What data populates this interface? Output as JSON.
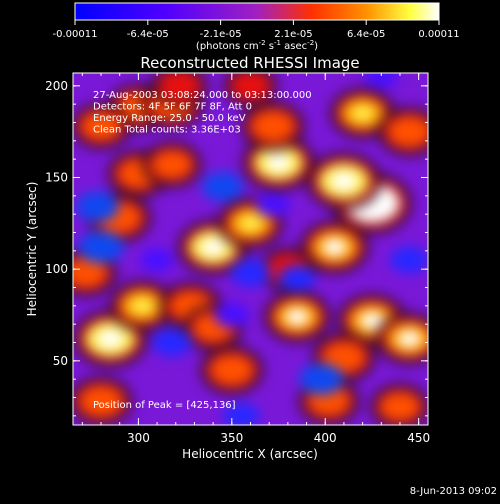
{
  "chart_data": {
    "type": "heatmap",
    "title": "Reconstructed RHESSI Image",
    "xlabel": "Heliocentric X (arcsec)",
    "ylabel": "Heliocentric Y (arcsec)",
    "xlim": [
      265,
      455
    ],
    "ylim": [
      15,
      207
    ],
    "x_ticks": [
      300,
      350,
      400,
      450
    ],
    "y_ticks": [
      50,
      100,
      150,
      200
    ],
    "colorbar": {
      "ticks": [
        "-0.00011",
        "-6.4e-05",
        "-2.1e-05",
        "2.1e-05",
        "6.4e-05",
        "0.00011"
      ],
      "unit_label": "(photons cm",
      "unit_exp1": "-2",
      "unit_mid": " s",
      "unit_exp2": "-1",
      "unit_mid2": " asec",
      "unit_exp3": "-2",
      "unit_end": ")",
      "range": [
        -0.00011,
        0.00011
      ]
    },
    "annotations": [
      "27-Aug-2003 03:08:24.000 to 03:13:00.000",
      "Detectors: 4F 5F 6F 7F 8F, Att 0",
      "Energy Range: 25.0 - 50.0 keV",
      "Clean     Total counts: 3.36E+03"
    ],
    "peak_label": "Position of Peak = [425,136]",
    "peak": [
      425,
      136
    ],
    "blobs": [
      {
        "x": 425,
        "y": 136,
        "v": 1.0
      },
      {
        "x": 410,
        "y": 148,
        "v": 0.85
      },
      {
        "x": 375,
        "y": 158,
        "v": 0.8
      },
      {
        "x": 340,
        "y": 112,
        "v": 0.75
      },
      {
        "x": 405,
        "y": 112,
        "v": 0.7
      },
      {
        "x": 360,
        "y": 125,
        "v": 0.6
      },
      {
        "x": 372,
        "y": 178,
        "v": 0.55
      },
      {
        "x": 420,
        "y": 185,
        "v": 0.6
      },
      {
        "x": 445,
        "y": 175,
        "v": 0.55
      },
      {
        "x": 300,
        "y": 188,
        "v": 0.5
      },
      {
        "x": 318,
        "y": 190,
        "v": 0.55
      },
      {
        "x": 280,
        "y": 178,
        "v": 0.45
      },
      {
        "x": 300,
        "y": 152,
        "v": 0.5
      },
      {
        "x": 318,
        "y": 157,
        "v": 0.45
      },
      {
        "x": 290,
        "y": 128,
        "v": 0.55
      },
      {
        "x": 272,
        "y": 98,
        "v": 0.5
      },
      {
        "x": 285,
        "y": 62,
        "v": 0.85
      },
      {
        "x": 302,
        "y": 80,
        "v": 0.6
      },
      {
        "x": 328,
        "y": 80,
        "v": 0.5
      },
      {
        "x": 280,
        "y": 28,
        "v": 0.55
      },
      {
        "x": 340,
        "y": 68,
        "v": 0.45
      },
      {
        "x": 350,
        "y": 45,
        "v": 0.55
      },
      {
        "x": 385,
        "y": 74,
        "v": 0.65
      },
      {
        "x": 425,
        "y": 72,
        "v": 0.7
      },
      {
        "x": 445,
        "y": 62,
        "v": 0.65
      },
      {
        "x": 410,
        "y": 52,
        "v": 0.55
      },
      {
        "x": 402,
        "y": 28,
        "v": 0.5
      },
      {
        "x": 440,
        "y": 25,
        "v": 0.45
      },
      {
        "x": 380,
        "y": 100,
        "v": 0.35
      },
      {
        "x": 322,
        "y": 200,
        "v": 0.35
      },
      {
        "x": 360,
        "y": 200,
        "v": 0.3
      },
      {
        "x": 280,
        "y": 112,
        "v": -0.7
      },
      {
        "x": 278,
        "y": 134,
        "v": -0.6
      },
      {
        "x": 345,
        "y": 145,
        "v": -0.55
      },
      {
        "x": 360,
        "y": 98,
        "v": -0.5
      },
      {
        "x": 385,
        "y": 95,
        "v": -0.4
      },
      {
        "x": 398,
        "y": 40,
        "v": -0.65
      },
      {
        "x": 318,
        "y": 60,
        "v": -0.5
      },
      {
        "x": 350,
        "y": 75,
        "v": -0.35
      },
      {
        "x": 310,
        "y": 105,
        "v": -0.3
      },
      {
        "x": 445,
        "y": 105,
        "v": -0.45
      },
      {
        "x": 355,
        "y": 20,
        "v": -0.4
      },
      {
        "x": 372,
        "y": 135,
        "v": -0.3
      },
      {
        "x": 430,
        "y": 205,
        "v": -0.3
      }
    ]
  },
  "footer": {
    "timestamp": "8-Jun-2013 09:02"
  },
  "colors": {
    "background": "#000000",
    "low": "#0000ff",
    "mid": "#8000ff",
    "high": "#ffffff"
  }
}
